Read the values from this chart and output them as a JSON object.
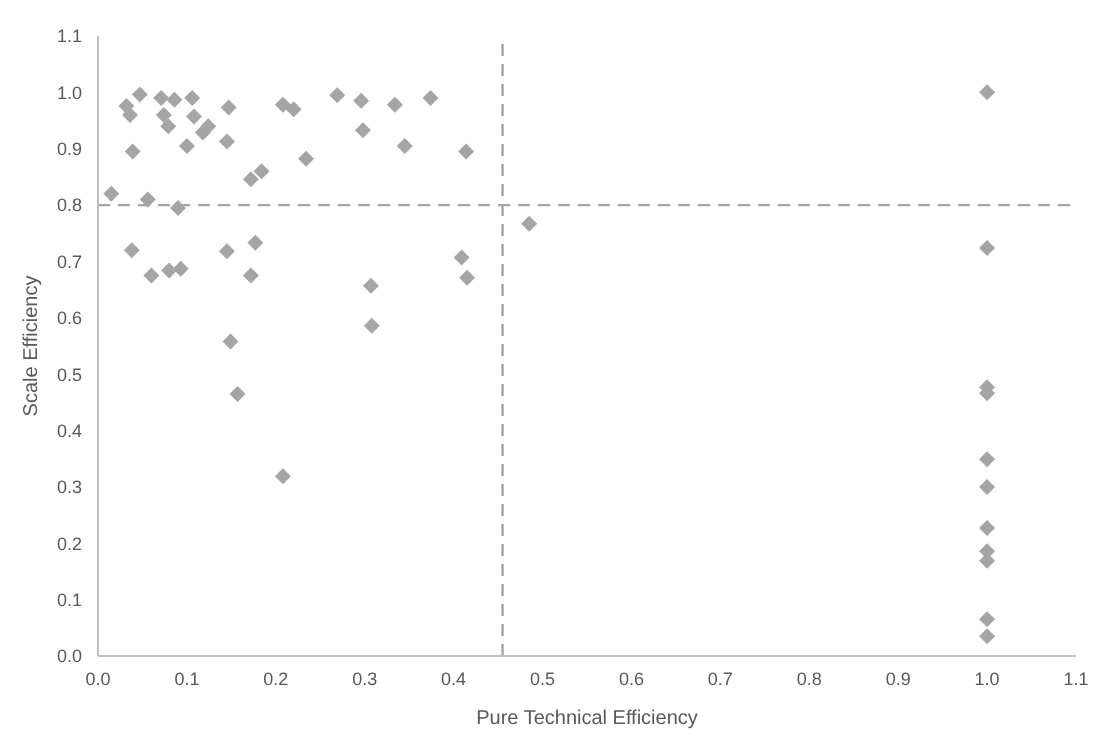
{
  "chart_data": {
    "type": "scatter",
    "xlabel": "Pure Technical Efficiency",
    "ylabel": "Scale Efficiency",
    "xlim": [
      0,
      1.1
    ],
    "ylim": [
      0,
      1.1
    ],
    "xticks": [
      {
        "value": 0,
        "label": "0.0"
      },
      0.1,
      0.2,
      0.3,
      0.4,
      0.5,
      0.6,
      0.7,
      0.8,
      0.9,
      {
        "value": 1,
        "label": "1.0"
      },
      1.1
    ],
    "yticks": [
      {
        "value": 0,
        "label": "0.0"
      },
      0.1,
      0.2,
      0.3,
      0.4,
      0.5,
      0.6,
      0.7,
      0.8,
      0.9,
      {
        "value": 1,
        "label": "1.0"
      },
      1.1
    ],
    "marker": "diamond",
    "grid": false,
    "ref_lines": [
      {
        "axis": "x",
        "value": 0.455,
        "color": "#a5a5a5",
        "line_style": "dashed"
      },
      {
        "axis": "y",
        "value": 0.8,
        "color": "#a5a5a5",
        "line_style": "dashed"
      }
    ],
    "series": [
      {
        "color": "#a5a5a5",
        "x": [
          0.015,
          0.032,
          0.036,
          0.039,
          0.038,
          0.047,
          0.056,
          0.06,
          0.071,
          0.074,
          0.079,
          0.08,
          0.086,
          0.09,
          0.093,
          0.1,
          0.106,
          0.108,
          0.118,
          0.124,
          0.145,
          0.147,
          0.145,
          0.149,
          0.172,
          0.172,
          0.177,
          0.184,
          0.208,
          0.22,
          0.234,
          0.269,
          0.296,
          0.298,
          0.307,
          0.308,
          0.334,
          0.345,
          0.374,
          0.409,
          0.414,
          0.415,
          0.485,
          0.157,
          0.208,
          1,
          1,
          1,
          1,
          1,
          1,
          1,
          1,
          1,
          1,
          1
        ],
        "values": [
          0.82,
          0.976,
          0.96,
          0.895,
          0.72,
          0.996,
          0.81,
          0.675,
          0.99,
          0.96,
          0.94,
          0.684,
          0.987,
          0.795,
          0.687,
          0.905,
          0.99,
          0.957,
          0.929,
          0.94,
          0.913,
          0.973,
          0.718,
          0.558,
          0.846,
          0.675,
          0.733,
          0.86,
          0.978,
          0.97,
          0.882,
          0.995,
          0.985,
          0.933,
          0.657,
          0.586,
          0.978,
          0.905,
          0.99,
          0.707,
          0.895,
          0.671,
          0.767,
          0.465,
          0.319,
          1,
          0.724,
          0.477,
          0.466,
          0.349,
          0.3,
          0.227,
          0.186,
          0.169,
          0.065,
          0.035
        ]
      }
    ]
  }
}
